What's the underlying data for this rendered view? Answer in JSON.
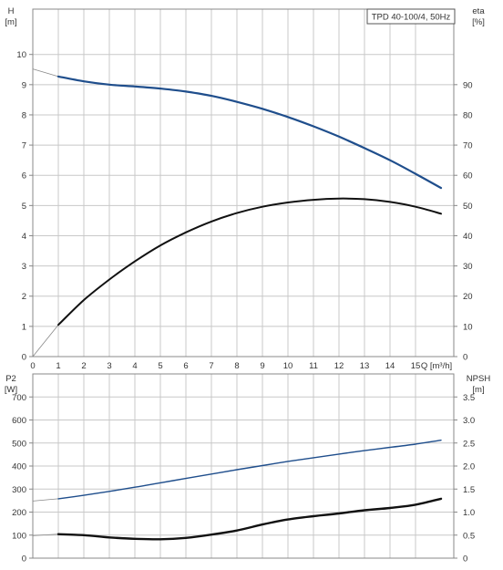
{
  "colors": {
    "grid": "#c8c8c8",
    "frame": "#888888",
    "head": "#1f4e8c",
    "eta": "#111111",
    "p2": "#1f4e8c",
    "npsh": "#111111",
    "thin": "#888888"
  },
  "chart_data": [
    {
      "type": "line",
      "title": "TPD 40-100/4, 50Hz",
      "xlabel": "Q [m³/h]",
      "ylabel_left": "H [m]",
      "ylabel_left_name": "H",
      "ylabel_left_unit": "[m]",
      "ylabel_right": "eta [%]",
      "ylabel_right_name": "eta",
      "ylabel_right_unit": "[%]",
      "xlim": [
        0,
        16.5
      ],
      "ylim_left": [
        0,
        11.5
      ],
      "ylim_right": [
        0,
        115
      ],
      "x_ticks": [
        "0",
        "1",
        "2",
        "3",
        "4",
        "5",
        "6",
        "7",
        "8",
        "9",
        "10",
        "11",
        "12",
        "13",
        "14",
        "15"
      ],
      "y_left_ticks": [
        "0",
        "1",
        "2",
        "3",
        "4",
        "5",
        "6",
        "7",
        "8",
        "9",
        "10"
      ],
      "y_right_ticks": [
        "0",
        "10",
        "20",
        "30",
        "40",
        "50",
        "60",
        "70",
        "80",
        "90"
      ],
      "grid": true,
      "series": [
        {
          "name": "H",
          "axis": "left",
          "x": [
            0,
            1,
            2,
            3,
            4,
            5,
            6,
            7,
            8,
            9,
            10,
            11,
            12,
            13,
            14,
            15,
            16
          ],
          "y": [
            9.52,
            9.27,
            9.11,
            9.0,
            8.94,
            8.87,
            8.77,
            8.63,
            8.43,
            8.2,
            7.93,
            7.62,
            7.28,
            6.9,
            6.5,
            6.05,
            5.58
          ]
        },
        {
          "name": "eta",
          "axis": "right",
          "x": [
            0,
            1,
            2,
            3,
            4,
            5,
            6,
            7,
            8,
            9,
            10,
            11,
            12,
            13,
            14,
            15,
            16
          ],
          "y": [
            0,
            10.5,
            18.7,
            25.5,
            31.5,
            36.8,
            41.1,
            44.7,
            47.5,
            49.6,
            51.0,
            51.9,
            52.3,
            52.1,
            51.2,
            49.6,
            47.3
          ]
        }
      ]
    },
    {
      "type": "line",
      "ylabel_left": "P2 [W]",
      "ylabel_left_name": "P2",
      "ylabel_left_unit": "[W]",
      "ylabel_right": "NPSH [m]",
      "ylabel_right_name": "NPSH",
      "ylabel_right_unit": "[m]",
      "xlim": [
        0,
        16.5
      ],
      "ylim_left": [
        0,
        800
      ],
      "ylim_right": [
        0,
        4
      ],
      "y_left_ticks": [
        "0",
        "100",
        "200",
        "300",
        "400",
        "500",
        "600",
        "700"
      ],
      "y_right_ticks": [
        "0",
        "0.5",
        "1.0",
        "1.5",
        "2.0",
        "2.5",
        "3.0",
        "3.5"
      ],
      "grid": true,
      "series": [
        {
          "name": "P2",
          "axis": "left",
          "x": [
            0,
            1,
            2,
            3,
            4,
            5,
            6,
            7,
            8,
            9,
            10,
            11,
            12,
            13,
            14,
            15,
            16
          ],
          "y": [
            248,
            258,
            273,
            290,
            308,
            327,
            346,
            365,
            384,
            402,
            420,
            436,
            452,
            467,
            481,
            495,
            512
          ]
        },
        {
          "name": "NPSH",
          "axis": "right",
          "x": [
            0,
            1,
            2,
            3,
            4,
            5,
            6,
            7,
            8,
            9,
            10,
            11,
            12,
            13,
            14,
            15,
            16
          ],
          "y": [
            0.49,
            0.52,
            0.5,
            0.45,
            0.42,
            0.41,
            0.44,
            0.51,
            0.6,
            0.73,
            0.84,
            0.91,
            0.97,
            1.04,
            1.09,
            1.16,
            1.29
          ]
        }
      ]
    }
  ]
}
